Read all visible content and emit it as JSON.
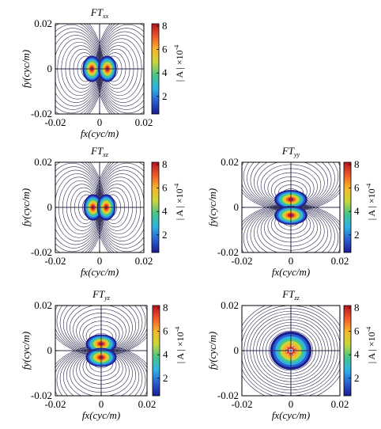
{
  "figure": {
    "colorbar_label": "| A | ×10",
    "colorbar_exponent": "-4",
    "colorbar_ticks": [
      "2",
      "4",
      "6",
      "8"
    ],
    "colormap": [
      "#1a1d8f",
      "#2a5fd1",
      "#2fb3e3",
      "#46c58a",
      "#c9d63a",
      "#f6b72a",
      "#f0592a",
      "#b5151d"
    ],
    "contour_color": "#2d2b52"
  },
  "chart_data": [
    {
      "type": "heatmap",
      "title": "FT",
      "title_sub": "xx",
      "xlabel": "fx(cyc/m)",
      "ylabel": "fy(cyc/m)",
      "xlim": [
        -0.02,
        0.02
      ],
      "ylim": [
        -0.02,
        0.02
      ],
      "xticks": [
        "-0.02",
        "0",
        "0.02"
      ],
      "yticks": [
        "-0.02",
        "0",
        "0.02"
      ],
      "color_range": [
        0.5,
        8.2
      ],
      "peaks": [
        [
          -0.0035,
          0.0
        ],
        [
          0.0035,
          0.0
        ]
      ],
      "peak_value": 8.0,
      "lobe_orientation": "horizontal"
    },
    {
      "type": "heatmap",
      "title": "FT",
      "title_sub": "xz",
      "xlabel": "fx(cyc/m)",
      "ylabel": "fy(cyc/m)",
      "xlim": [
        -0.02,
        0.02
      ],
      "ylim": [
        -0.02,
        0.02
      ],
      "xticks": [
        "-0.02",
        "0",
        "0.02"
      ],
      "yticks": [
        "-0.02",
        "0",
        "0.02"
      ],
      "color_range": [
        0.5,
        8.2
      ],
      "peaks": [
        [
          -0.003,
          0.0
        ],
        [
          0.003,
          0.0
        ]
      ],
      "peak_value": 8.0,
      "lobe_orientation": "horizontal"
    },
    {
      "type": "heatmap",
      "title": "FT",
      "title_sub": "yy",
      "xlabel": "fx(cyc/m)",
      "ylabel": "fy(cyc/m)",
      "xlim": [
        -0.02,
        0.02
      ],
      "ylim": [
        -0.02,
        0.02
      ],
      "xticks": [
        "-0.02",
        "0",
        "0.02"
      ],
      "yticks": [
        "-0.02",
        "0",
        "0.02"
      ],
      "color_range": [
        0.5,
        8.2
      ],
      "peaks": [
        [
          0.0,
          0.0035
        ],
        [
          0.0,
          -0.0035
        ]
      ],
      "peak_value": 8.0,
      "lobe_orientation": "vertical"
    },
    {
      "type": "heatmap",
      "title": "FT",
      "title_sub": "yz",
      "xlabel": "fx(cyc/m)",
      "ylabel": "fy(cyc/m)",
      "xlim": [
        -0.02,
        0.02
      ],
      "ylim": [
        -0.02,
        0.02
      ],
      "xticks": [
        "-0.02",
        "0",
        "0.02"
      ],
      "yticks": [
        "-0.02",
        "0",
        "0.02"
      ],
      "color_range": [
        0.5,
        8.2
      ],
      "peaks": [
        [
          0.0,
          0.003
        ],
        [
          0.0,
          -0.003
        ]
      ],
      "peak_value": 8.0,
      "lobe_orientation": "vertical"
    },
    {
      "type": "heatmap",
      "title": "FT",
      "title_sub": "zz",
      "xlabel": "fx(cyc/m)",
      "ylabel": "fy(cyc/m)",
      "xlim": [
        -0.02,
        0.02
      ],
      "ylim": [
        -0.02,
        0.02
      ],
      "xticks": [
        "-0.02",
        "0",
        "0.02"
      ],
      "yticks": [
        "-0.02",
        "0",
        "0.02"
      ],
      "color_range": [
        0.5,
        8.2
      ],
      "peaks": [
        [
          0.0,
          0.0
        ]
      ],
      "peak_value": 8.0,
      "lobe_orientation": "radial"
    }
  ]
}
